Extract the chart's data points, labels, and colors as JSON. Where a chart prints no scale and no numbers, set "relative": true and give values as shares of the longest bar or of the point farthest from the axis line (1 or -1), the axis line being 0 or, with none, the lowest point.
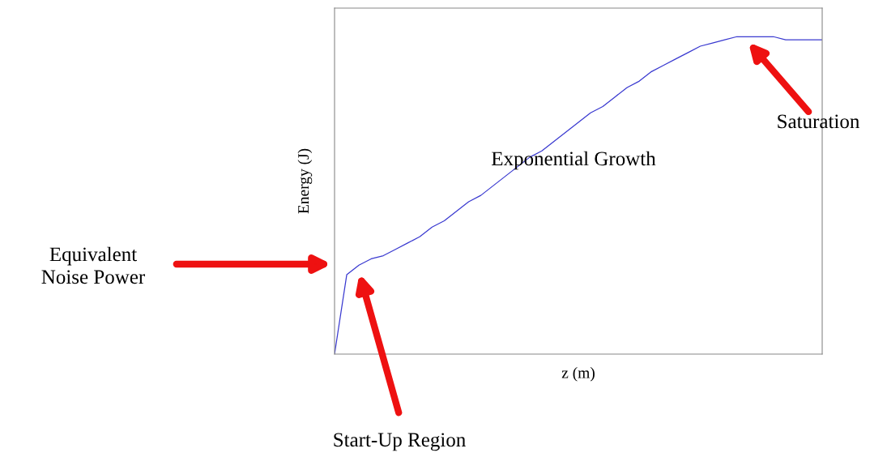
{
  "chart_data": {
    "type": "line",
    "relative": true,
    "xlabel": "z (m)",
    "ylabel": "Energy (J)",
    "categories": [
      null,
      null,
      null,
      null,
      null,
      null,
      null,
      null,
      null,
      null,
      null,
      null,
      null,
      null,
      null,
      null,
      null,
      null,
      null,
      null,
      null,
      null,
      null,
      null,
      null,
      null,
      null,
      null,
      null,
      null,
      null,
      null,
      null,
      null,
      null,
      null,
      null,
      null,
      null,
      null,
      null
    ],
    "series": [
      {
        "color": "#3a3ad0",
        "values": [
          0,
          0.25,
          0.28,
          0.3,
          0.31,
          0.33,
          0.35,
          0.37,
          0.4,
          0.42,
          0.45,
          0.48,
          0.5,
          0.53,
          0.56,
          0.59,
          0.62,
          0.64,
          0.67,
          0.7,
          0.73,
          0.76,
          0.78,
          0.81,
          0.84,
          0.86,
          0.89,
          0.91,
          0.93,
          0.95,
          0.97,
          0.98,
          0.99,
          1,
          1,
          1,
          1,
          0.99,
          0.99,
          0.99,
          0.99
        ]
      }
    ],
    "annotations": [
      "Equivalent\nNoise Power",
      "Start-Up Region",
      "Saturation",
      "Exponential Growth"
    ],
    "grid": false,
    "legend": false
  }
}
